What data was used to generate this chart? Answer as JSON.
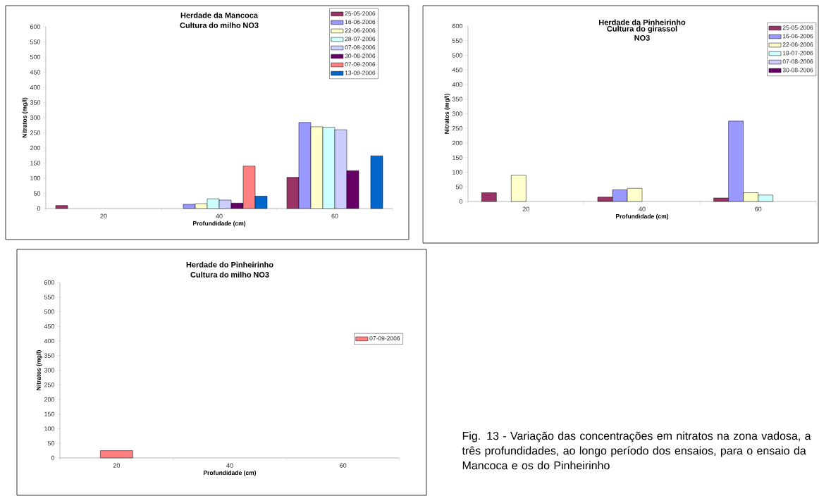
{
  "chart_data": [
    {
      "type": "bar",
      "title": "Herdade da Mancoca",
      "subtitle": "Cultura do milho NO3",
      "xlabel": "Profundidade (cm)",
      "ylabel": "Nitratos (mg/l)",
      "categories": [
        "20",
        "40",
        "60"
      ],
      "ylim": [
        0,
        600
      ],
      "yticks": [
        0,
        50,
        100,
        150,
        200,
        250,
        300,
        350,
        400,
        450,
        500,
        550,
        600
      ],
      "legend": "top right",
      "series": [
        {
          "name": "25-05-2006",
          "color": "#993366",
          "values": [
            10,
            null,
            103
          ]
        },
        {
          "name": "16-06-2006",
          "color": "#9999ff",
          "values": [
            null,
            14,
            284
          ]
        },
        {
          "name": "22-06-2006",
          "color": "#ffffcc",
          "values": [
            null,
            16,
            270
          ]
        },
        {
          "name": "28-07-2006",
          "color": "#ccffff",
          "values": [
            null,
            32,
            268
          ]
        },
        {
          "name": "07-08-2006",
          "color": "#ccccff",
          "values": [
            null,
            28,
            260
          ]
        },
        {
          "name": "30-08-2006",
          "color": "#660066",
          "values": [
            null,
            18,
            125
          ]
        },
        {
          "name": "07-09-2006",
          "color": "#ff8080",
          "values": [
            null,
            140,
            null
          ]
        },
        {
          "name": "13-09-2006",
          "color": "#0066cc",
          "values": [
            null,
            41,
            174
          ]
        }
      ]
    },
    {
      "type": "bar",
      "title": "Herdade da Pinheirinho",
      "subtitle": "Cultura do girassol NO3",
      "xlabel": "Profundidade (cm)",
      "ylabel": "Nitratos (mg/l)",
      "categories": [
        "20",
        "40",
        "60"
      ],
      "ylim": [
        0,
        600
      ],
      "yticks": [
        0,
        50,
        100,
        150,
        200,
        250,
        300,
        350,
        400,
        450,
        500,
        550,
        600
      ],
      "legend": "top right",
      "series": [
        {
          "name": "25-05-2006",
          "color": "#993366",
          "values": [
            30,
            15,
            12
          ]
        },
        {
          "name": "16-06-2006",
          "color": "#9999ff",
          "values": [
            null,
            40,
            275
          ]
        },
        {
          "name": "22-06-2006",
          "color": "#ffffcc",
          "values": [
            90,
            45,
            30
          ]
        },
        {
          "name": "18-07-2006",
          "color": "#ccffff",
          "values": [
            null,
            null,
            22
          ]
        },
        {
          "name": "07-08-2006",
          "color": "#ccccff",
          "values": [
            null,
            null,
            null
          ]
        },
        {
          "name": "30-08-2006",
          "color": "#660066",
          "values": [
            null,
            null,
            null
          ]
        }
      ]
    },
    {
      "type": "bar",
      "title": "Herdade do Pinheirinho",
      "subtitle": "Cultura do milho NO3",
      "xlabel": "Profundidade (cm)",
      "ylabel": "Nitratos (mg/l)",
      "categories": [
        "20",
        "40",
        "60"
      ],
      "ylim": [
        0,
        600
      ],
      "yticks": [
        0,
        50,
        100,
        150,
        200,
        250,
        300,
        350,
        400,
        450,
        500,
        550,
        600
      ],
      "legend": "right",
      "series": [
        {
          "name": "07-09-2006",
          "color": "#ff8080",
          "values": [
            25,
            null,
            null
          ]
        }
      ]
    },
    {
      "type": "other",
      "annotations": [
        "Fig. 13 - Variação das concentrações em nitratos na zona vadosa, a três profundidades, ao longo período dos ensaios, para o ensaio da Mancoca e os do Pinheirinho"
      ]
    }
  ]
}
